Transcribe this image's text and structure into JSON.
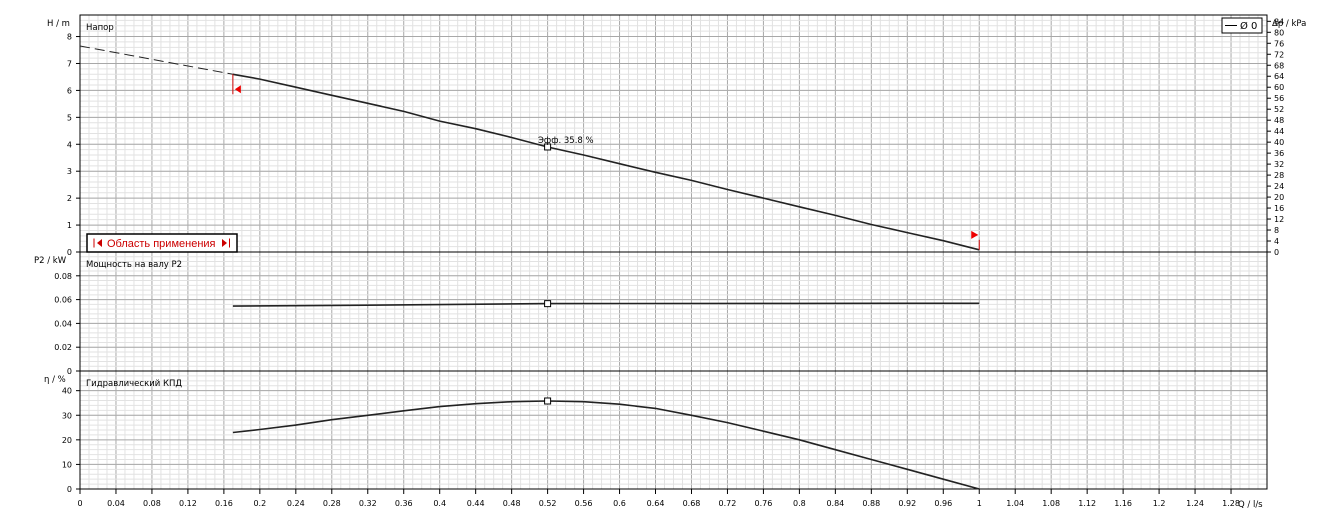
{
  "chart_data": [
    {
      "type": "line",
      "title": "Напор",
      "ylabel_left": "H / m",
      "ylabel_right": "Δp / kPa",
      "xlabel": "Q / l/s",
      "xlim": [
        0,
        1.32
      ],
      "ylim": [
        0,
        8.8
      ],
      "y2lim": [
        0,
        86.3
      ],
      "yticks": [
        "0",
        "1",
        "2",
        "3",
        "4",
        "5",
        "6",
        "7",
        "8"
      ],
      "y2ticks": [
        "0",
        "4",
        "8",
        "12",
        "16",
        "20",
        "24",
        "28",
        "32",
        "36",
        "40",
        "44",
        "48",
        "52",
        "56",
        "60",
        "64",
        "68",
        "72",
        "76",
        "80",
        "84"
      ],
      "legend": {
        "label": "Ø 0",
        "placement": "top-right"
      },
      "annotation": {
        "text": "Эфф. 35.8 %",
        "x": 0.52,
        "y": 3.9
      },
      "application_range": {
        "label": "Область применения",
        "q_min": 0.17,
        "q_max": 1.0
      },
      "series": [
        {
          "style": "dashed",
          "x": [
            0,
            0.17
          ],
          "y": [
            7.65,
            6.6
          ]
        },
        {
          "style": "solid",
          "x": [
            0.17,
            0.2,
            0.24,
            0.28,
            0.32,
            0.36,
            0.4,
            0.44,
            0.48,
            0.52,
            0.56,
            0.6,
            0.64,
            0.68,
            0.72,
            0.76,
            0.8,
            0.84,
            0.88,
            0.92,
            0.96,
            1.0
          ],
          "y": [
            6.6,
            6.42,
            6.12,
            5.82,
            5.52,
            5.22,
            4.86,
            4.58,
            4.25,
            3.9,
            3.6,
            3.28,
            2.96,
            2.66,
            2.32,
            2.0,
            1.68,
            1.36,
            1.02,
            0.72,
            0.42,
            0.08
          ]
        }
      ],
      "marker": {
        "x": 0.52,
        "y": 3.9
      }
    },
    {
      "type": "line",
      "title": "Мощность на валу P2",
      "ylabel_left": "P2 / kW",
      "xlim": [
        0,
        1.32
      ],
      "ylim": [
        0,
        0.1
      ],
      "yticks": [
        "0",
        "0.02",
        "0.04",
        "0.06",
        "0.08"
      ],
      "series": [
        {
          "style": "solid",
          "x": [
            0.17,
            0.3,
            0.4,
            0.52,
            0.6,
            0.8,
            1.0
          ],
          "y": [
            0.0545,
            0.0552,
            0.0558,
            0.0566,
            0.0567,
            0.0568,
            0.0569
          ]
        }
      ],
      "marker": {
        "x": 0.52,
        "y": 0.0566
      }
    },
    {
      "type": "line",
      "title": "Гидравлический КПД",
      "ylabel_left": "η / %",
      "xlabel": "Q / l/s",
      "xlim": [
        0,
        1.32
      ],
      "ylim": [
        0,
        48
      ],
      "yticks": [
        "0",
        "10",
        "20",
        "30",
        "40"
      ],
      "xticks": [
        "0",
        "0.04",
        "0.08",
        "0.12",
        "0.16",
        "0.2",
        "0.24",
        "0.28",
        "0.32",
        "0.36",
        "0.4",
        "0.44",
        "0.48",
        "0.52",
        "0.56",
        "0.6",
        "0.64",
        "0.68",
        "0.72",
        "0.76",
        "0.8",
        "0.84",
        "0.88",
        "0.92",
        "0.96",
        "1",
        "1.04",
        "1.08",
        "1.12",
        "1.16",
        "1.2",
        "1.24",
        "1.28"
      ],
      "series": [
        {
          "style": "solid",
          "x": [
            0.17,
            0.2,
            0.24,
            0.28,
            0.32,
            0.36,
            0.4,
            0.44,
            0.48,
            0.52,
            0.56,
            0.6,
            0.64,
            0.68,
            0.72,
            0.76,
            0.8,
            0.84,
            0.88,
            0.92,
            0.96,
            1.0
          ],
          "y": [
            23,
            24.2,
            26,
            28.2,
            30,
            31.8,
            33.5,
            34.7,
            35.5,
            35.8,
            35.5,
            34.5,
            32.8,
            30,
            27,
            23.5,
            20,
            16,
            12,
            8,
            4,
            0
          ]
        }
      ],
      "marker": {
        "x": 0.52,
        "y": 35.8
      }
    }
  ]
}
